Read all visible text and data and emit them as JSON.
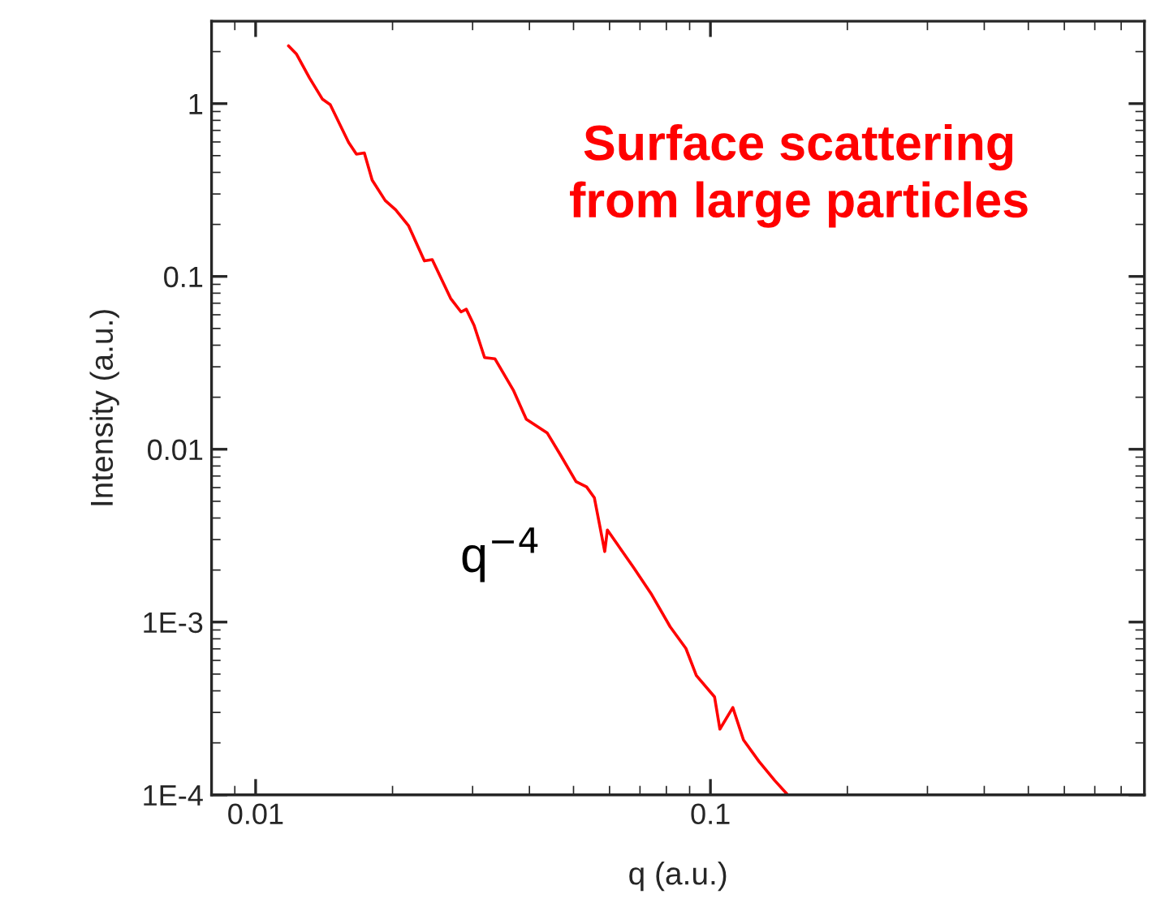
{
  "chart_data": {
    "type": "line",
    "xlabel": "q (a.u.)",
    "ylabel": "Intensity (a.u.)",
    "log": "xy",
    "grid": false,
    "legend": false,
    "marker": "none",
    "line_style": "solid",
    "xlim": [
      0.008,
      0.9
    ],
    "xticks": [
      0.01,
      0.1
    ],
    "ylim": [
      0.0001,
      3
    ],
    "yticks": [
      1,
      0.1,
      0.01,
      {
        "value": 0.001,
        "label": "1E-3"
      },
      {
        "value": 0.0001,
        "label": "1E-4"
      }
    ],
    "series": [
      {
        "color": "#ff0000",
        "x": [
          0.01181,
          0.01229,
          0.01313,
          0.01403,
          0.01459,
          0.01601,
          0.01666,
          0.01734,
          0.01804,
          0.01927,
          0.02032,
          0.0217,
          0.0235,
          0.02445,
          0.02684,
          0.02829,
          0.02905,
          0.03022,
          0.03187,
          0.03358,
          0.03686,
          0.03937,
          0.04379,
          0.04677,
          0.05064,
          0.05341,
          0.05556,
          0.05856,
          0.05935,
          0.06776,
          0.0743,
          0.08154,
          0.08832,
          0.09311,
          0.1021,
          0.1049,
          0.112,
          0.1182,
          0.1279,
          0.1385,
          0.1479
        ],
        "values": [
          2.16,
          1.94,
          1.41,
          1.06,
          0.987,
          0.597,
          0.51,
          0.518,
          0.361,
          0.275,
          0.243,
          0.196,
          0.123,
          0.125,
          0.0746,
          0.0623,
          0.0646,
          0.0521,
          0.0339,
          0.0334,
          0.022,
          0.0149,
          0.0124,
          0.0093,
          0.0065,
          0.00606,
          0.00524,
          0.00256,
          0.00341,
          0.00207,
          0.00144,
          0.00094,
          0.000704,
          0.000491,
          0.000369,
          0.00024,
          0.00032,
          0.000208,
          0.000156,
          0.000121,
          0.0001
        ]
      }
    ],
    "annotations": [
      "q$^{−4}$",
      "Surface scattering\nfrom large particles"
    ]
  }
}
